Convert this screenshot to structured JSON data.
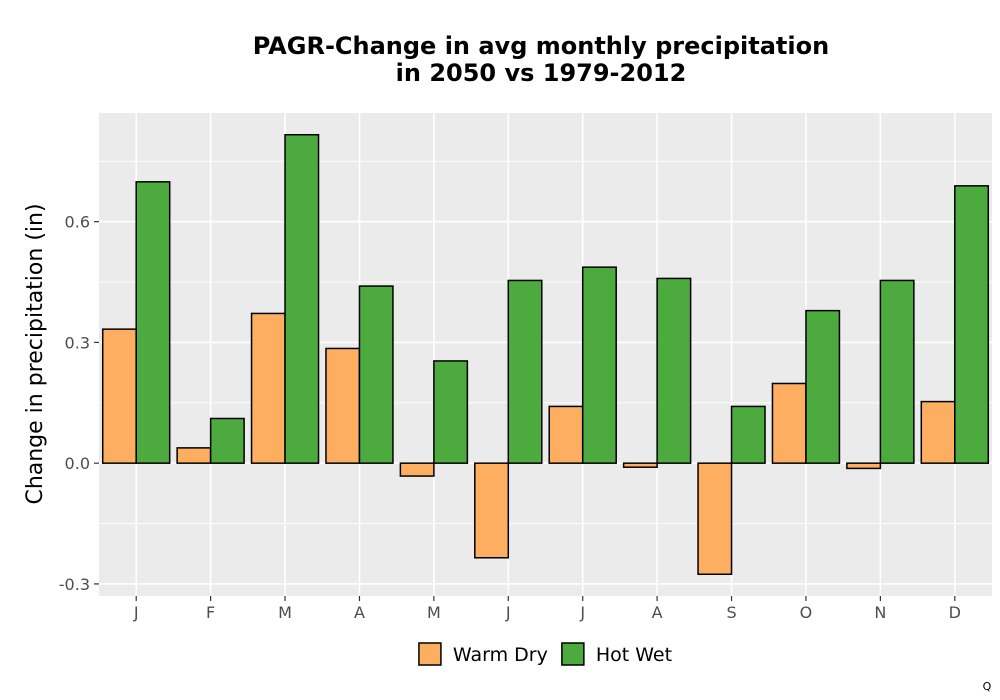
{
  "chart_data": {
    "type": "bar",
    "title_lines": [
      "PAGR-Change in avg monthly precipitation",
      "in 2050 vs 1979-2012"
    ],
    "xlabel": "",
    "ylabel": "Change in precipitation (in)",
    "categories": [
      "J",
      "F",
      "M",
      "A",
      "M",
      "J",
      "J",
      "A",
      "S",
      "O",
      "N",
      "D"
    ],
    "series": [
      {
        "name": "Warm Dry",
        "color": "#fdae61",
        "values": [
          0.333,
          0.038,
          0.372,
          0.285,
          -0.032,
          -0.235,
          0.141,
          -0.01,
          -0.276,
          0.198,
          -0.013,
          0.153
        ]
      },
      {
        "name": "Hot Wet",
        "color": "#4daa3f",
        "values": [
          0.699,
          0.111,
          0.816,
          0.44,
          0.254,
          0.454,
          0.487,
          0.459,
          0.141,
          0.379,
          0.454,
          0.689
        ]
      }
    ],
    "ylim": [
      -0.33,
      0.87
    ],
    "yticks": [
      -0.3,
      0.0,
      0.3,
      0.6
    ],
    "ytick_labels": [
      "-0.3",
      "0.0",
      "0.3",
      "0.6"
    ],
    "grid": true,
    "legend_position": "bottom",
    "panel_background": "#ebebeb",
    "corner_mark": "Q"
  }
}
